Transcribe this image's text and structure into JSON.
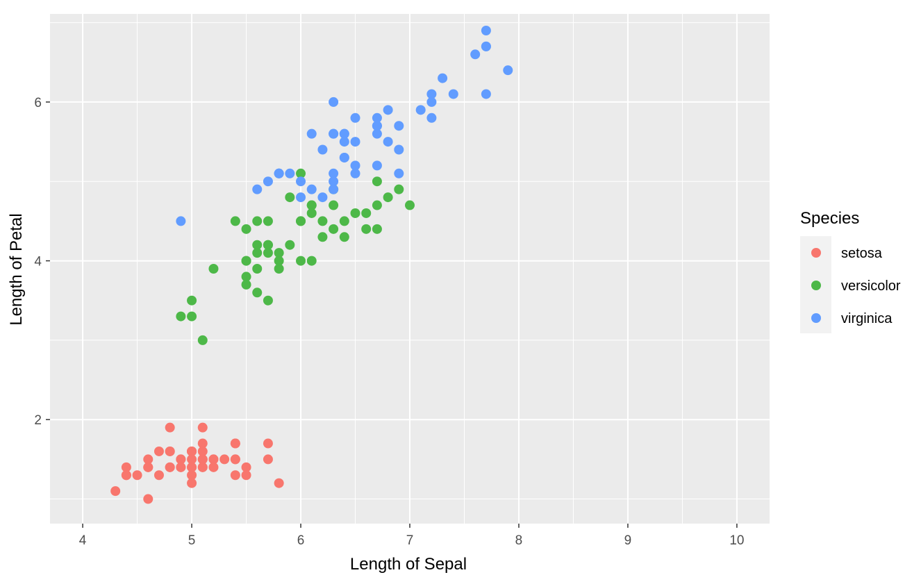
{
  "chart_data": {
    "type": "scatter",
    "xlabel": "Length of Sepal",
    "ylabel": "Length of Petal",
    "xlim": [
      3.7,
      10.3
    ],
    "ylim": [
      0.69,
      7.11
    ],
    "x_ticks": [
      4,
      5,
      6,
      7,
      8,
      9,
      10
    ],
    "y_ticks": [
      2,
      4,
      6
    ],
    "grid": true,
    "legend": {
      "title": "Species",
      "placement": "right",
      "entries": [
        {
          "label": "setosa",
          "color": "#F8766D"
        },
        {
          "label": "versicolor",
          "color": "#4DB848"
        },
        {
          "label": "virginica",
          "color": "#619CFF"
        }
      ]
    },
    "series": [
      {
        "name": "setosa",
        "color": "#F8766D",
        "points": [
          [
            5.1,
            1.4
          ],
          [
            4.9,
            1.4
          ],
          [
            4.7,
            1.3
          ],
          [
            4.6,
            1.5
          ],
          [
            5.0,
            1.4
          ],
          [
            5.4,
            1.7
          ],
          [
            4.6,
            1.4
          ],
          [
            5.0,
            1.5
          ],
          [
            4.4,
            1.4
          ],
          [
            4.9,
            1.5
          ],
          [
            5.4,
            1.5
          ],
          [
            4.8,
            1.6
          ],
          [
            4.8,
            1.4
          ],
          [
            4.3,
            1.1
          ],
          [
            5.8,
            1.2
          ],
          [
            5.7,
            1.5
          ],
          [
            5.4,
            1.3
          ],
          [
            5.1,
            1.4
          ],
          [
            5.7,
            1.7
          ],
          [
            5.1,
            1.5
          ],
          [
            5.4,
            1.7
          ],
          [
            5.1,
            1.5
          ],
          [
            4.6,
            1.0
          ],
          [
            5.1,
            1.7
          ],
          [
            4.8,
            1.9
          ],
          [
            5.0,
            1.6
          ],
          [
            5.0,
            1.6
          ],
          [
            5.2,
            1.5
          ],
          [
            5.2,
            1.4
          ],
          [
            4.7,
            1.6
          ],
          [
            4.8,
            1.6
          ],
          [
            5.4,
            1.5
          ],
          [
            5.2,
            1.5
          ],
          [
            5.5,
            1.4
          ],
          [
            4.9,
            1.5
          ],
          [
            5.0,
            1.2
          ],
          [
            5.5,
            1.3
          ],
          [
            4.9,
            1.4
          ],
          [
            4.4,
            1.3
          ],
          [
            5.1,
            1.5
          ],
          [
            5.0,
            1.3
          ],
          [
            4.5,
            1.3
          ],
          [
            4.4,
            1.3
          ],
          [
            5.0,
            1.6
          ],
          [
            5.1,
            1.9
          ],
          [
            4.8,
            1.4
          ],
          [
            5.1,
            1.6
          ],
          [
            4.6,
            1.4
          ],
          [
            5.3,
            1.5
          ],
          [
            5.0,
            1.4
          ]
        ]
      },
      {
        "name": "versicolor",
        "color": "#4DB848",
        "points": [
          [
            7.0,
            4.7
          ],
          [
            6.4,
            4.5
          ],
          [
            6.9,
            4.9
          ],
          [
            5.5,
            4.0
          ],
          [
            6.5,
            4.6
          ],
          [
            5.7,
            4.5
          ],
          [
            6.3,
            4.7
          ],
          [
            4.9,
            3.3
          ],
          [
            6.6,
            4.6
          ],
          [
            5.2,
            3.9
          ],
          [
            5.0,
            3.5
          ],
          [
            5.9,
            4.2
          ],
          [
            6.0,
            4.0
          ],
          [
            6.1,
            4.7
          ],
          [
            5.6,
            3.6
          ],
          [
            6.7,
            4.4
          ],
          [
            5.6,
            4.5
          ],
          [
            5.8,
            4.1
          ],
          [
            6.2,
            4.5
          ],
          [
            5.6,
            3.9
          ],
          [
            5.9,
            4.8
          ],
          [
            6.1,
            4.0
          ],
          [
            6.3,
            4.9
          ],
          [
            6.1,
            4.7
          ],
          [
            6.4,
            4.3
          ],
          [
            6.6,
            4.4
          ],
          [
            6.8,
            4.8
          ],
          [
            6.7,
            5.0
          ],
          [
            6.0,
            4.5
          ],
          [
            5.7,
            3.5
          ],
          [
            5.5,
            3.8
          ],
          [
            5.5,
            3.7
          ],
          [
            5.8,
            3.9
          ],
          [
            6.0,
            5.1
          ],
          [
            5.4,
            4.5
          ],
          [
            6.0,
            4.5
          ],
          [
            6.7,
            4.7
          ],
          [
            6.3,
            4.4
          ],
          [
            5.6,
            4.1
          ],
          [
            5.5,
            4.0
          ],
          [
            5.5,
            4.4
          ],
          [
            6.1,
            4.6
          ],
          [
            5.8,
            4.0
          ],
          [
            5.0,
            3.3
          ],
          [
            5.6,
            4.2
          ],
          [
            5.7,
            4.2
          ],
          [
            5.7,
            4.2
          ],
          [
            6.2,
            4.3
          ],
          [
            5.1,
            3.0
          ],
          [
            5.7,
            4.1
          ]
        ]
      },
      {
        "name": "virginica",
        "color": "#619CFF",
        "points": [
          [
            6.3,
            6.0
          ],
          [
            5.8,
            5.1
          ],
          [
            7.1,
            5.9
          ],
          [
            6.3,
            5.6
          ],
          [
            6.5,
            5.8
          ],
          [
            7.6,
            6.6
          ],
          [
            4.9,
            4.5
          ],
          [
            7.3,
            6.3
          ],
          [
            6.7,
            5.8
          ],
          [
            7.2,
            6.1
          ],
          [
            6.5,
            5.1
          ],
          [
            6.4,
            5.3
          ],
          [
            6.8,
            5.5
          ],
          [
            5.7,
            5.0
          ],
          [
            5.8,
            5.1
          ],
          [
            6.4,
            5.3
          ],
          [
            6.5,
            5.5
          ],
          [
            7.7,
            6.7
          ],
          [
            7.7,
            6.9
          ],
          [
            6.0,
            5.0
          ],
          [
            6.9,
            5.7
          ],
          [
            5.6,
            4.9
          ],
          [
            7.7,
            6.7
          ],
          [
            6.3,
            4.9
          ],
          [
            6.7,
            5.7
          ],
          [
            7.2,
            6.0
          ],
          [
            6.2,
            4.8
          ],
          [
            6.1,
            4.9
          ],
          [
            6.4,
            5.6
          ],
          [
            7.2,
            5.8
          ],
          [
            7.4,
            6.1
          ],
          [
            7.9,
            6.4
          ],
          [
            6.4,
            5.6
          ],
          [
            6.3,
            5.1
          ],
          [
            6.1,
            5.6
          ],
          [
            7.7,
            6.1
          ],
          [
            6.3,
            5.6
          ],
          [
            6.4,
            5.5
          ],
          [
            6.0,
            4.8
          ],
          [
            6.9,
            5.4
          ],
          [
            6.7,
            5.6
          ],
          [
            6.9,
            5.1
          ],
          [
            5.8,
            5.1
          ],
          [
            6.8,
            5.9
          ],
          [
            6.7,
            5.7
          ],
          [
            6.7,
            5.2
          ],
          [
            6.3,
            5.0
          ],
          [
            6.5,
            5.2
          ],
          [
            6.2,
            5.4
          ],
          [
            5.9,
            5.1
          ]
        ]
      }
    ]
  }
}
